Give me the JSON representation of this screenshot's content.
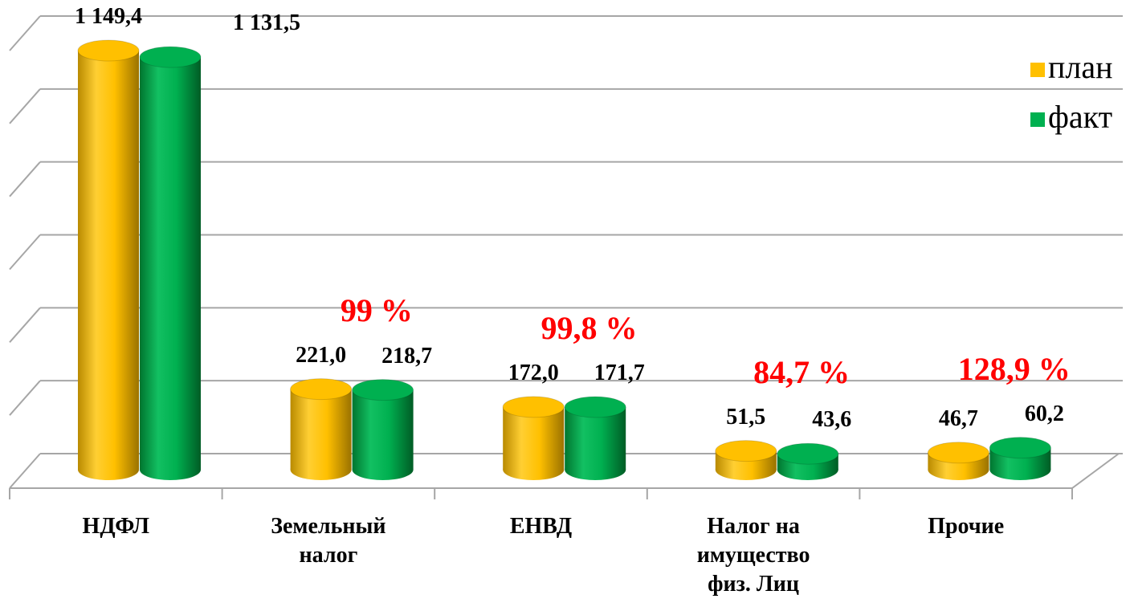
{
  "chart_data": {
    "type": "bar3d",
    "categories": [
      "НДФЛ",
      "Земельный налог",
      "ЕНВД",
      "Налог на имущество физ. Лиц",
      "Прочие"
    ],
    "series": [
      {
        "name": "план",
        "color": "#ffc000",
        "values": [
          1149.4,
          221.0,
          172.0,
          51.5,
          46.7
        ],
        "value_labels": [
          "1 149,4",
          "221,0",
          "172,0",
          "51,5",
          "46,7"
        ]
      },
      {
        "name": "факт",
        "color": "#00b050",
        "values": [
          1131.5,
          218.7,
          171.7,
          43.6,
          60.2
        ],
        "value_labels": [
          "1 131,5",
          "218,7",
          "171,7",
          "43,6",
          "60,2"
        ]
      }
    ],
    "annotations": [
      null,
      "99 %",
      "99,8 %",
      "84,7 %",
      "128,9 %"
    ],
    "annotation_color": "#ff0000",
    "ylim": [
      0,
      1200
    ],
    "yticks": [
      0,
      200,
      400,
      600,
      800,
      1000,
      1200
    ],
    "grid": true,
    "legend": "top-right"
  }
}
